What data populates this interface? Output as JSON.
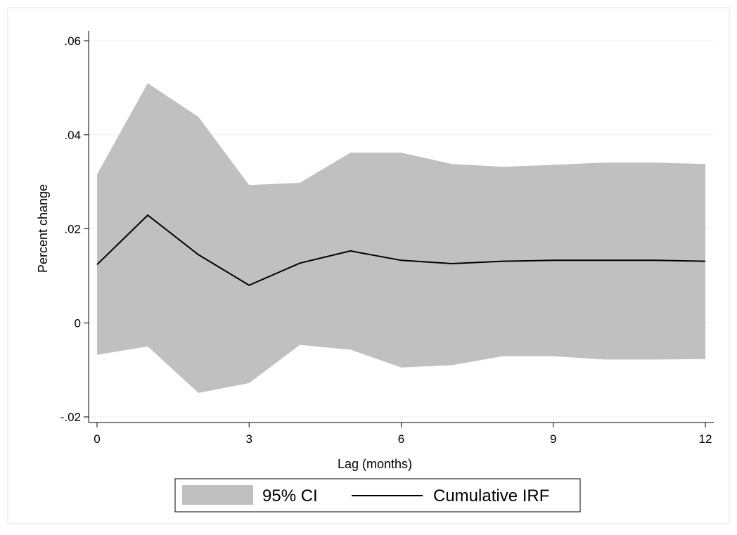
{
  "chart_data": {
    "type": "area",
    "xlabel": "Lag (months)",
    "ylabel": "Percent change",
    "xlim": [
      0,
      12
    ],
    "ylim": [
      -0.02,
      0.06
    ],
    "x_ticks": [
      {
        "value": 0,
        "label": "0"
      },
      {
        "value": 3,
        "label": "3"
      },
      {
        "value": 6,
        "label": "6"
      },
      {
        "value": 9,
        "label": "9"
      },
      {
        "value": 12,
        "label": "12"
      }
    ],
    "y_ticks": [
      {
        "value": -0.02,
        "label": "-.02"
      },
      {
        "value": 0,
        "label": "0"
      },
      {
        "value": 0.02,
        "label": ".02"
      },
      {
        "value": 0.04,
        "label": ".04"
      },
      {
        "value": 0.06,
        "label": ".06"
      }
    ],
    "grid": true,
    "legend_placement": "bottom",
    "x": [
      0,
      1,
      2,
      3,
      4,
      5,
      6,
      7,
      8,
      9,
      10,
      11,
      12
    ],
    "series": [
      {
        "name": "95% CI",
        "kind": "band",
        "color": "#c0c0c0",
        "upper": [
          0.0316,
          0.051,
          0.0438,
          0.0293,
          0.0298,
          0.0362,
          0.0362,
          0.0338,
          0.0332,
          0.0336,
          0.0341,
          0.0341,
          0.0338
        ],
        "lower": [
          -0.0068,
          -0.005,
          -0.0149,
          -0.0128,
          -0.0047,
          -0.0057,
          -0.0095,
          -0.009,
          -0.0071,
          -0.0071,
          -0.0078,
          -0.0078,
          -0.0077
        ]
      },
      {
        "name": "Cumulative IRF",
        "kind": "line",
        "color": "#000000",
        "values": [
          0.0124,
          0.0229,
          0.0145,
          0.008,
          0.0127,
          0.0153,
          0.0133,
          0.0126,
          0.0131,
          0.0133,
          0.0133,
          0.0133,
          0.0131
        ]
      }
    ]
  }
}
